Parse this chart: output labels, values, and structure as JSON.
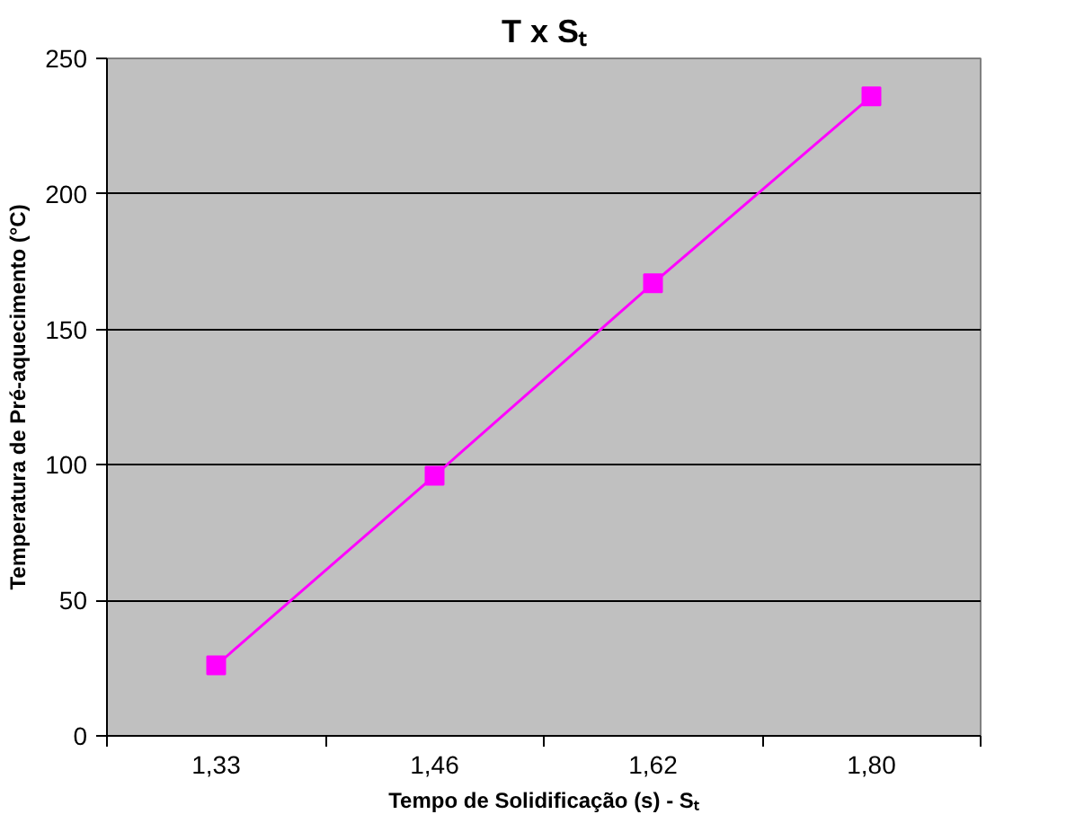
{
  "chart_data": {
    "type": "line",
    "title": "T x Sₜ",
    "xlabel": "Tempo de Solidificação (s) - Sₜ",
    "ylabel": "Temperatura de Pré-aquecimento (°C)",
    "categories": [
      "1,33",
      "1,46",
      "1,62",
      "1,80"
    ],
    "series": [
      {
        "color": "#ff00ff",
        "values": [
          26,
          96,
          167,
          236
        ]
      }
    ],
    "ylim": [
      0,
      250
    ],
    "yticks": [
      0,
      50,
      100,
      150,
      200,
      250
    ],
    "grid": "y",
    "marker": "square",
    "line_style": "solid"
  }
}
